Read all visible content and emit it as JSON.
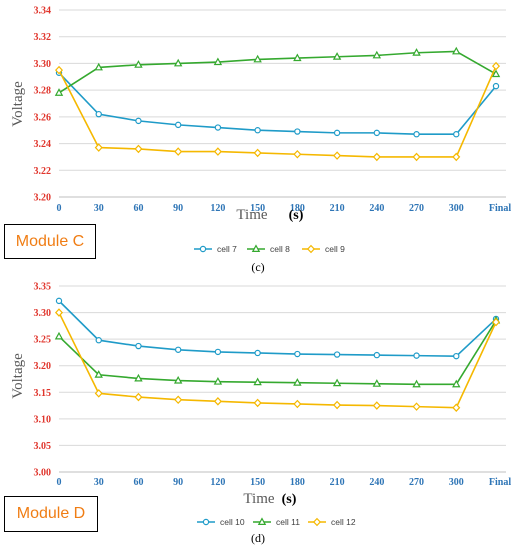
{
  "chart_data": [
    {
      "type": "line",
      "categories": [
        "0",
        "30",
        "60",
        "90",
        "120",
        "150",
        "180",
        "210",
        "240",
        "270",
        "300",
        "Final"
      ],
      "ylim": [
        3.2,
        3.34
      ],
      "yticks": [
        "3.20",
        "3.22",
        "3.24",
        "3.26",
        "3.28",
        "3.30",
        "3.32",
        "3.34"
      ],
      "xlabel": "Time",
      "xlabel_unit": "(s)",
      "ylabel": "Voltage",
      "module_label": "Module C",
      "caption": "(c)",
      "grid": "horizontal",
      "legend_position": "bottom",
      "series": [
        {
          "name": "cell 7",
          "color": "#1f9bc8",
          "marker": "circle",
          "values": [
            3.293,
            3.262,
            3.257,
            3.254,
            3.252,
            3.25,
            3.249,
            3.248,
            3.248,
            3.247,
            3.247,
            3.283
          ]
        },
        {
          "name": "cell 8",
          "color": "#35a92f",
          "marker": "triangle",
          "values": [
            3.278,
            3.297,
            3.299,
            3.3,
            3.301,
            3.303,
            3.304,
            3.305,
            3.306,
            3.308,
            3.309,
            3.292
          ]
        },
        {
          "name": "cell 9",
          "color": "#f5b800",
          "marker": "diamond",
          "values": [
            3.295,
            3.237,
            3.236,
            3.234,
            3.234,
            3.233,
            3.232,
            3.231,
            3.23,
            3.23,
            3.23,
            3.298
          ]
        }
      ]
    },
    {
      "type": "line",
      "categories": [
        "0",
        "30",
        "60",
        "90",
        "120",
        "150",
        "180",
        "210",
        "240",
        "270",
        "300",
        "Final"
      ],
      "ylim": [
        3.0,
        3.35
      ],
      "yticks": [
        "3.00",
        "3.05",
        "3.10",
        "3.15",
        "3.20",
        "3.25",
        "3.30",
        "3.35"
      ],
      "xlabel": "Time",
      "xlabel_unit": "(s)",
      "ylabel": "Voltage",
      "module_label": "Module D",
      "caption": "(d)",
      "grid": "horizontal",
      "legend_position": "bottom",
      "series": [
        {
          "name": "cell 10",
          "color": "#1f9bc8",
          "marker": "circle",
          "values": [
            3.322,
            3.248,
            3.237,
            3.23,
            3.226,
            3.224,
            3.222,
            3.221,
            3.22,
            3.219,
            3.218,
            3.288
          ]
        },
        {
          "name": "cell 11",
          "color": "#35a92f",
          "marker": "triangle",
          "values": [
            3.255,
            3.183,
            3.176,
            3.172,
            3.17,
            3.169,
            3.168,
            3.167,
            3.166,
            3.165,
            3.165,
            3.285
          ]
        },
        {
          "name": "cell 12",
          "color": "#f5b800",
          "marker": "diamond",
          "values": [
            3.3,
            3.148,
            3.141,
            3.136,
            3.133,
            3.13,
            3.128,
            3.126,
            3.125,
            3.123,
            3.121,
            3.282
          ]
        }
      ]
    }
  ]
}
